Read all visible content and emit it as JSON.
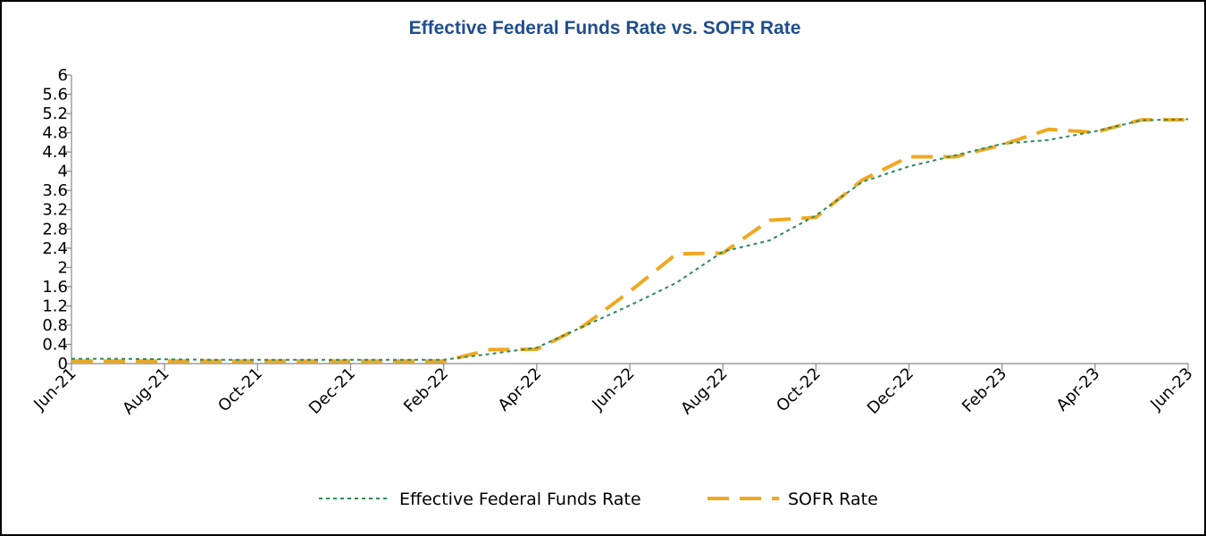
{
  "chart_data": {
    "type": "line",
    "title": "Effective Federal Funds Rate vs. SOFR Rate",
    "xlabel": "",
    "ylabel": "",
    "ylim": [
      0,
      6
    ],
    "y_ticks": [
      "0",
      "0.4",
      "0.8",
      "1.2",
      "1.6",
      "2",
      "2.4",
      "2.8",
      "3.2",
      "3.6",
      "4",
      "4.4",
      "4.8",
      "5.2",
      "5.6",
      "6"
    ],
    "x_tick_labels": [
      "Jun-21",
      "Aug-21",
      "Oct-21",
      "Dec-21",
      "Feb-22",
      "Apr-22",
      "Jun-22",
      "Aug-22",
      "Oct-22",
      "Dec-22",
      "Feb-23",
      "Apr-23",
      "Jun-23"
    ],
    "x_count": 25,
    "legend": "bottom",
    "grid": false,
    "series": [
      {
        "name": "Effective Federal Funds Rate",
        "color": "#2e8b57",
        "style": "short-dash",
        "values": [
          0.1,
          0.1,
          0.09,
          0.08,
          0.08,
          0.08,
          0.08,
          0.08,
          0.08,
          0.2,
          0.33,
          0.77,
          1.21,
          1.68,
          2.33,
          2.56,
          3.08,
          3.78,
          4.1,
          4.33,
          4.57,
          4.65,
          4.83,
          5.06,
          5.08
        ]
      },
      {
        "name": "SOFR Rate",
        "color": "#f0a820",
        "style": "long-dash",
        "values": [
          0.05,
          0.05,
          0.05,
          0.05,
          0.05,
          0.05,
          0.05,
          0.05,
          0.05,
          0.29,
          0.3,
          0.78,
          1.5,
          2.28,
          2.3,
          2.98,
          3.04,
          3.82,
          4.3,
          4.3,
          4.55,
          4.87,
          4.81,
          5.07,
          5.07
        ]
      }
    ]
  }
}
